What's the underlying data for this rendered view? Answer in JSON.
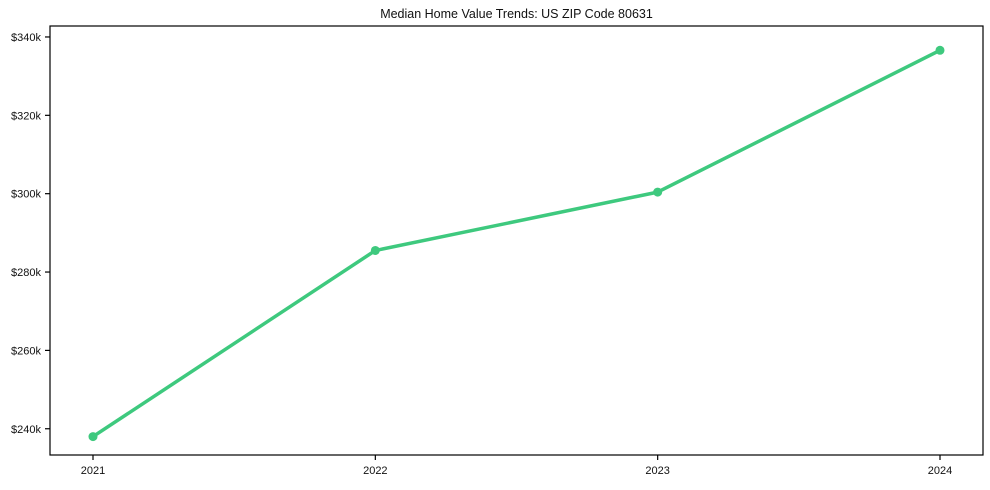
{
  "chart_data": {
    "type": "line",
    "title": "Median Home Value Trends: US ZIP Code 80631",
    "categories": [
      "2021",
      "2022",
      "2023",
      "2024"
    ],
    "values": [
      238000,
      285500,
      300400,
      336600
    ],
    "series": [
      {
        "name": "Median home value",
        "values": [
          238000,
          285500,
          300400,
          336600
        ]
      }
    ],
    "xlabel": "",
    "ylabel": "",
    "ylim": [
      233300,
      342800
    ],
    "y_ticks": [
      240000,
      260000,
      280000,
      300000,
      320000,
      340000
    ],
    "y_tick_labels": [
      "$240k",
      "$260k",
      "$280k",
      "$300k",
      "$320k",
      "$340k"
    ],
    "x_tick_labels": [
      "2021",
      "2022",
      "2023",
      "2024"
    ],
    "grid": false,
    "legend": "none",
    "line_color": "#3ec97e",
    "spine_color": "#000000",
    "tick_color": "#000000",
    "marker": "circle"
  }
}
